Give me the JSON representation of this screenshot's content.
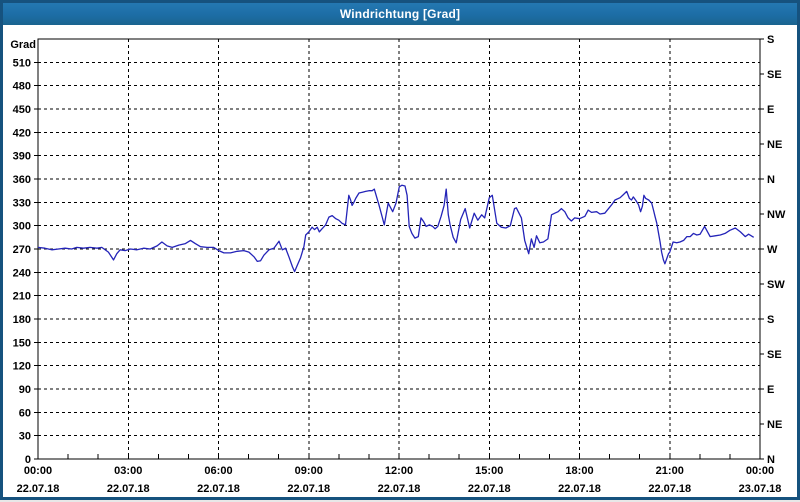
{
  "window": {
    "title": "Windrichtung [Grad]"
  },
  "colors": {
    "frame": "#16527e",
    "titlebar_bg": "#1d6da5",
    "titlebar_text": "#ffffff",
    "plot_background": "#ffffff",
    "axis_and_grid": "#000000",
    "series_line": "#2424b8"
  },
  "chart_data": {
    "type": "line",
    "title": "Windrichtung [Grad]",
    "grid": "dashed",
    "legend_position": "none",
    "y_axis_left": {
      "unit_label": "Grad",
      "min": 0,
      "max": 540,
      "tick_step": 30,
      "tick_values": [
        0,
        30,
        60,
        90,
        120,
        150,
        180,
        210,
        240,
        270,
        300,
        330,
        360,
        390,
        420,
        450,
        480,
        510
      ]
    },
    "y_axis_right": {
      "tick_step": 45,
      "ticks": [
        {
          "deg": 0,
          "label": "N"
        },
        {
          "deg": 45,
          "label": "NE"
        },
        {
          "deg": 90,
          "label": "E"
        },
        {
          "deg": 135,
          "label": "SE"
        },
        {
          "deg": 180,
          "label": "S"
        },
        {
          "deg": 225,
          "label": "SW"
        },
        {
          "deg": 270,
          "label": "W"
        },
        {
          "deg": 315,
          "label": "NW"
        },
        {
          "deg": 360,
          "label": "N"
        },
        {
          "deg": 405,
          "label": "NE"
        },
        {
          "deg": 450,
          "label": "E"
        },
        {
          "deg": 495,
          "label": "SE"
        },
        {
          "deg": 540,
          "label": "S"
        }
      ]
    },
    "x_axis": {
      "hours_span": 24,
      "major_tick_hours": 3,
      "minor_tick_hours": 1,
      "major_ticks": [
        {
          "time": "00:00",
          "date": "22.07.18"
        },
        {
          "time": "03:00",
          "date": "22.07.18"
        },
        {
          "time": "06:00",
          "date": "22.07.18"
        },
        {
          "time": "09:00",
          "date": "22.07.18"
        },
        {
          "time": "12:00",
          "date": "22.07.18"
        },
        {
          "time": "15:00",
          "date": "22.07.18"
        },
        {
          "time": "18:00",
          "date": "22.07.18"
        },
        {
          "time": "21:00",
          "date": "22.07.18"
        },
        {
          "time": "00:00",
          "date": "23.07.18"
        }
      ]
    },
    "series": [
      {
        "name": "Windrichtung",
        "color": "#2424b8",
        "points": [
          [
            0,
            272
          ],
          [
            0.23,
            271
          ],
          [
            0.46,
            269
          ],
          [
            0.68,
            270
          ],
          [
            0.9,
            271
          ],
          [
            1.12,
            270
          ],
          [
            1.29,
            272
          ],
          [
            1.51,
            271
          ],
          [
            1.73,
            272
          ],
          [
            1.96,
            271
          ],
          [
            2.12,
            272
          ],
          [
            2.34,
            266
          ],
          [
            2.51,
            256
          ],
          [
            2.62,
            264
          ],
          [
            2.73,
            269
          ],
          [
            2.9,
            268
          ],
          [
            3.07,
            270
          ],
          [
            3.29,
            269
          ],
          [
            3.51,
            271
          ],
          [
            3.73,
            270
          ],
          [
            3.96,
            274
          ],
          [
            4.12,
            279
          ],
          [
            4.29,
            274
          ],
          [
            4.46,
            272
          ],
          [
            4.68,
            275
          ],
          [
            4.9,
            277
          ],
          [
            5.07,
            281
          ],
          [
            5.23,
            277
          ],
          [
            5.4,
            273
          ],
          [
            5.62,
            272
          ],
          [
            5.84,
            272
          ],
          [
            6.01,
            268
          ],
          [
            6.18,
            265
          ],
          [
            6.4,
            265
          ],
          [
            6.62,
            267
          ],
          [
            6.84,
            268
          ],
          [
            7.01,
            266
          ],
          [
            7.18,
            260
          ],
          [
            7.29,
            254
          ],
          [
            7.4,
            255
          ],
          [
            7.51,
            262
          ],
          [
            7.68,
            269
          ],
          [
            7.84,
            271
          ],
          [
            8.01,
            280
          ],
          [
            8.12,
            269
          ],
          [
            8.23,
            271
          ],
          [
            8.34,
            260
          ],
          [
            8.46,
            247
          ],
          [
            8.53,
            241
          ],
          [
            8.62,
            249
          ],
          [
            8.73,
            259
          ],
          [
            8.84,
            273
          ],
          [
            8.9,
            288
          ],
          [
            9.0,
            292
          ],
          [
            9.11,
            298
          ],
          [
            9.19,
            295
          ],
          [
            9.28,
            298
          ],
          [
            9.35,
            292
          ],
          [
            9.44,
            296
          ],
          [
            9.56,
            301
          ],
          [
            9.67,
            311
          ],
          [
            9.78,
            313
          ],
          [
            9.9,
            309
          ],
          [
            10.0,
            307
          ],
          [
            10.11,
            303
          ],
          [
            10.22,
            301
          ],
          [
            10.33,
            339
          ],
          [
            10.39,
            333
          ],
          [
            10.44,
            326
          ],
          [
            10.5,
            330
          ],
          [
            10.56,
            335
          ],
          [
            10.67,
            342
          ],
          [
            10.78,
            343
          ],
          [
            10.89,
            344
          ],
          [
            11.0,
            345
          ],
          [
            11.11,
            345
          ],
          [
            11.18,
            347
          ],
          [
            11.34,
            326
          ],
          [
            11.51,
            301
          ],
          [
            11.64,
            329
          ],
          [
            11.79,
            318
          ],
          [
            11.9,
            329
          ],
          [
            12.01,
            350
          ],
          [
            12.1,
            352
          ],
          [
            12.2,
            351
          ],
          [
            12.27,
            339
          ],
          [
            12.34,
            299
          ],
          [
            12.43,
            290
          ],
          [
            12.53,
            284
          ],
          [
            12.64,
            286
          ],
          [
            12.73,
            310
          ],
          [
            12.82,
            305
          ],
          [
            12.9,
            299
          ],
          [
            13.01,
            301
          ],
          [
            13.12,
            299
          ],
          [
            13.2,
            296
          ],
          [
            13.29,
            299
          ],
          [
            13.4,
            312
          ],
          [
            13.5,
            326
          ],
          [
            13.57,
            347
          ],
          [
            13.64,
            314
          ],
          [
            13.7,
            301
          ],
          [
            13.8,
            285
          ],
          [
            13.9,
            278
          ],
          [
            14.05,
            308
          ],
          [
            14.2,
            322
          ],
          [
            14.35,
            297
          ],
          [
            14.5,
            316
          ],
          [
            14.62,
            307
          ],
          [
            14.75,
            314
          ],
          [
            14.85,
            310
          ],
          [
            15.0,
            336
          ],
          [
            15.1,
            339
          ],
          [
            15.25,
            303
          ],
          [
            15.4,
            298
          ],
          [
            15.55,
            297
          ],
          [
            15.7,
            300
          ],
          [
            15.84,
            322
          ],
          [
            15.9,
            323
          ],
          [
            16.07,
            310
          ],
          [
            16.18,
            281
          ],
          [
            16.31,
            264
          ],
          [
            16.4,
            283
          ],
          [
            16.49,
            272
          ],
          [
            16.57,
            287
          ],
          [
            16.68,
            278
          ],
          [
            16.8,
            279
          ],
          [
            16.95,
            283
          ],
          [
            17.07,
            314
          ],
          [
            17.18,
            316
          ],
          [
            17.29,
            318
          ],
          [
            17.4,
            322
          ],
          [
            17.51,
            318
          ],
          [
            17.62,
            310
          ],
          [
            17.73,
            306
          ],
          [
            17.84,
            310
          ],
          [
            18.0,
            309
          ],
          [
            18.18,
            312
          ],
          [
            18.29,
            320
          ],
          [
            18.4,
            317
          ],
          [
            18.57,
            318
          ],
          [
            18.68,
            315
          ],
          [
            18.84,
            316
          ],
          [
            19.07,
            327
          ],
          [
            19.18,
            333
          ],
          [
            19.35,
            336
          ],
          [
            19.46,
            340
          ],
          [
            19.57,
            344
          ],
          [
            19.66,
            335
          ],
          [
            19.73,
            333
          ],
          [
            19.79,
            337
          ],
          [
            19.88,
            332
          ],
          [
            19.96,
            327
          ],
          [
            20.03,
            318
          ],
          [
            20.09,
            325
          ],
          [
            20.14,
            339
          ],
          [
            20.2,
            335
          ],
          [
            20.3,
            333
          ],
          [
            20.4,
            329
          ],
          [
            20.46,
            320
          ],
          [
            20.51,
            312
          ],
          [
            20.57,
            303
          ],
          [
            20.62,
            292
          ],
          [
            20.68,
            279
          ],
          [
            20.73,
            266
          ],
          [
            20.79,
            256
          ],
          [
            20.84,
            251
          ],
          [
            20.96,
            264
          ],
          [
            21.0,
            266
          ],
          [
            21.11,
            279
          ],
          [
            21.23,
            278
          ],
          [
            21.34,
            279
          ],
          [
            21.46,
            281
          ],
          [
            21.57,
            286
          ],
          [
            21.68,
            286
          ],
          [
            21.79,
            290
          ],
          [
            21.9,
            288
          ],
          [
            22.01,
            289
          ],
          [
            22.16,
            299
          ],
          [
            22.34,
            286
          ],
          [
            22.51,
            287
          ],
          [
            22.68,
            288
          ],
          [
            22.84,
            290
          ],
          [
            23.0,
            294
          ],
          [
            23.18,
            297
          ],
          [
            23.35,
            292
          ],
          [
            23.51,
            286
          ],
          [
            23.62,
            289
          ],
          [
            23.79,
            285
          ]
        ]
      }
    ]
  }
}
